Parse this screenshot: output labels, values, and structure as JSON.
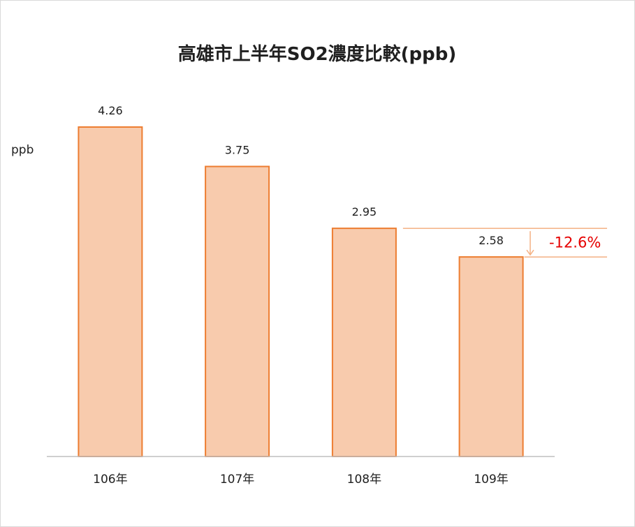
{
  "chart_data": {
    "type": "bar",
    "title": "高雄市上半年SO2濃度比較(ppb)",
    "xlabel": "",
    "ylabel": "ppb",
    "categories": [
      "106年",
      "107年",
      "108年",
      "109年"
    ],
    "values": [
      4.26,
      3.75,
      2.95,
      2.58
    ],
    "value_labels": [
      "4.26",
      "3.75",
      "2.95",
      "2.58"
    ],
    "ylim": [
      0,
      5
    ],
    "grid": false,
    "legend": "none",
    "annotation": {
      "text": "-12.6%",
      "from_category": "108年",
      "to_category": "109年"
    },
    "colors": {
      "bar_fill": "#f8cbad",
      "bar_stroke": "#ed7d31",
      "annotation_text": "#e60000",
      "guide_line": "#ed7d31",
      "arrow": "#f4b183",
      "axis": "#bfbfbf"
    }
  }
}
